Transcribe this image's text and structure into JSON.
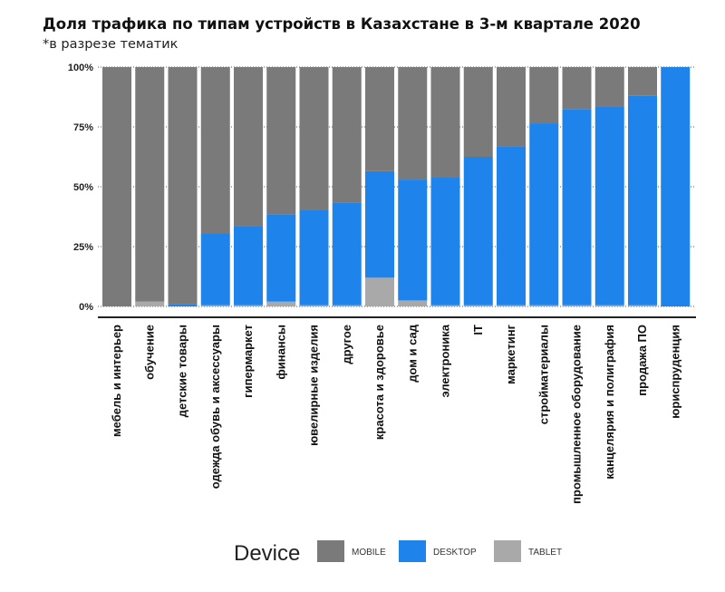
{
  "chart_data": {
    "type": "bar",
    "stacked": true,
    "percent_stacked": true,
    "title": "Доля трафика по типам устройств в Казахстане в 3-м квартале 2020",
    "subtitle": "*в разрезе тематик",
    "xlabel": "",
    "ylabel": "",
    "ylim": [
      0,
      100
    ],
    "yticks": [
      "0%",
      "25%",
      "50%",
      "75%",
      "100%"
    ],
    "grid": false,
    "legend_title": "Device",
    "legend_position": "bottom",
    "categories": [
      "мебель и интерьер",
      "обучение",
      "детские товары",
      "одежда обувь и аксессуары",
      "гипермаркет",
      "финансы",
      "ювелирные изделия",
      "другое",
      "красота и здоровье",
      "дом и сад",
      "электроника",
      "IT",
      "маркетинг",
      "стройматериалы",
      "промышленное оборудование",
      "канцелярия и полиграфия",
      "продажа ПО",
      "юриспруденция"
    ],
    "series": [
      {
        "name": "TABLET",
        "color": "#a9a9a9",
        "values": [
          0,
          2,
          0,
          0.5,
          0.5,
          2,
          0.5,
          0.5,
          12,
          2.5,
          0.5,
          0.5,
          0.5,
          0.5,
          0.5,
          0.5,
          0.5,
          0
        ]
      },
      {
        "name": "DESKTOP",
        "color": "#1e84ec",
        "values": [
          0,
          0,
          1,
          30,
          33,
          36.5,
          40,
          43,
          44.5,
          50.5,
          53.5,
          62,
          66.5,
          76,
          82,
          83,
          87.5,
          100
        ]
      },
      {
        "name": "MOBILE",
        "color": "#7a7a7a",
        "values": [
          100,
          98,
          99,
          69.5,
          66.5,
          61.5,
          59.5,
          56.5,
          43.5,
          47,
          46,
          37.5,
          33,
          23.5,
          17.5,
          16.5,
          12,
          0
        ]
      }
    ],
    "legend_order": [
      "MOBILE",
      "DESKTOP",
      "TABLET"
    ]
  }
}
